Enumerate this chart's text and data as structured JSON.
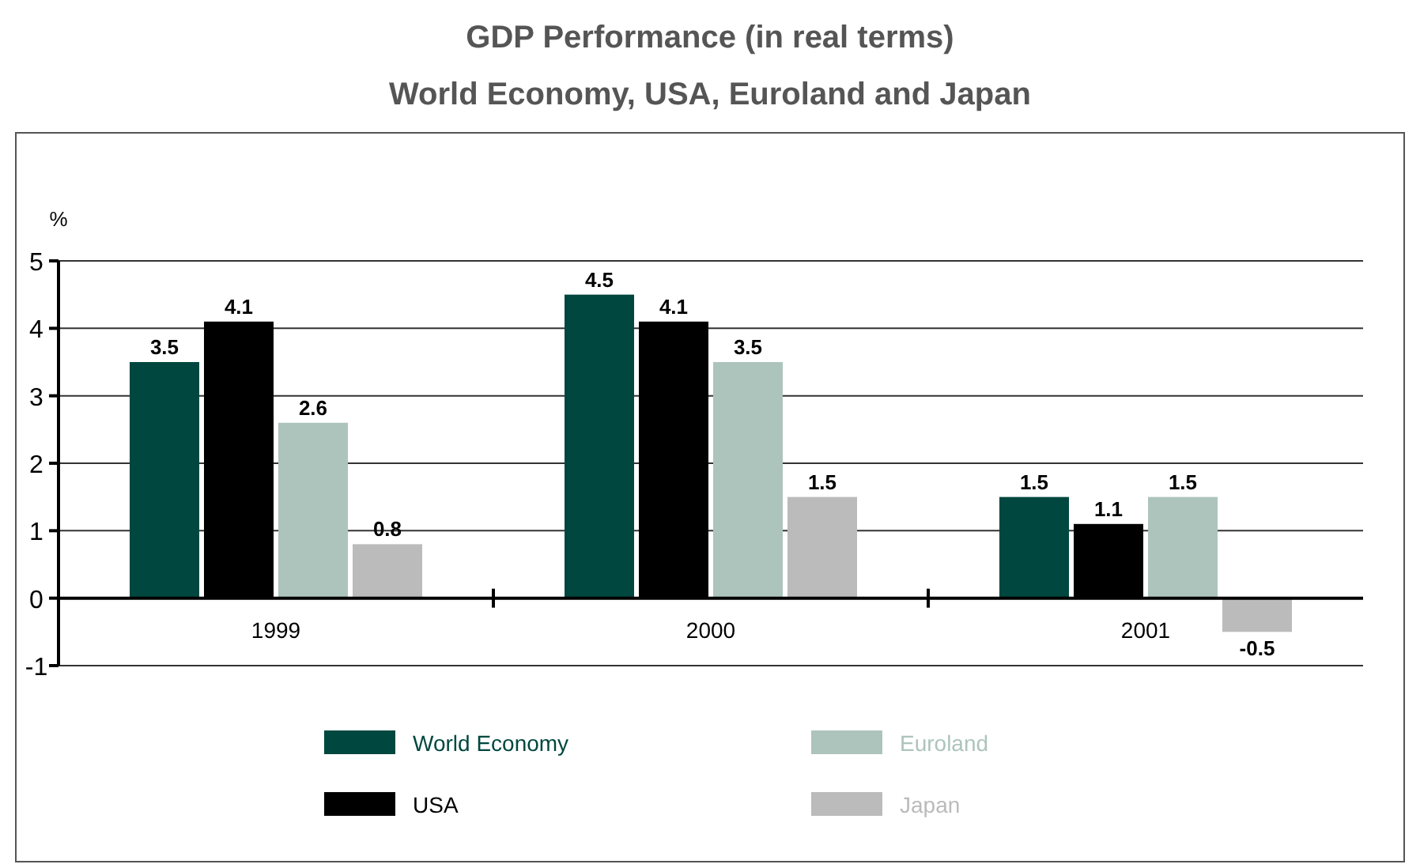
{
  "chart_data": {
    "type": "bar",
    "title": "GDP Performance (in real terms)",
    "subtitle": "World Economy, USA, Euroland and Japan",
    "ylabel": "%",
    "categories": [
      "1999",
      "2000",
      "2001"
    ],
    "series": [
      {
        "name": "World Economy",
        "color": "#00473f",
        "values": [
          3.5,
          4.5,
          1.5
        ]
      },
      {
        "name": "USA",
        "color": "#000000",
        "values": [
          4.1,
          4.1,
          1.1
        ]
      },
      {
        "name": "Euroland",
        "color": "#adc4bc",
        "values": [
          2.6,
          3.5,
          1.5
        ]
      },
      {
        "name": "Japan",
        "color": "#bbbbbb",
        "values": [
          0.8,
          1.5,
          -0.5
        ]
      }
    ],
    "ylim": [
      -1,
      5
    ],
    "yticks": [
      -1,
      0,
      1,
      2,
      3,
      4,
      5
    ],
    "grid": "y",
    "data_labels": true,
    "legend": "bottom"
  }
}
